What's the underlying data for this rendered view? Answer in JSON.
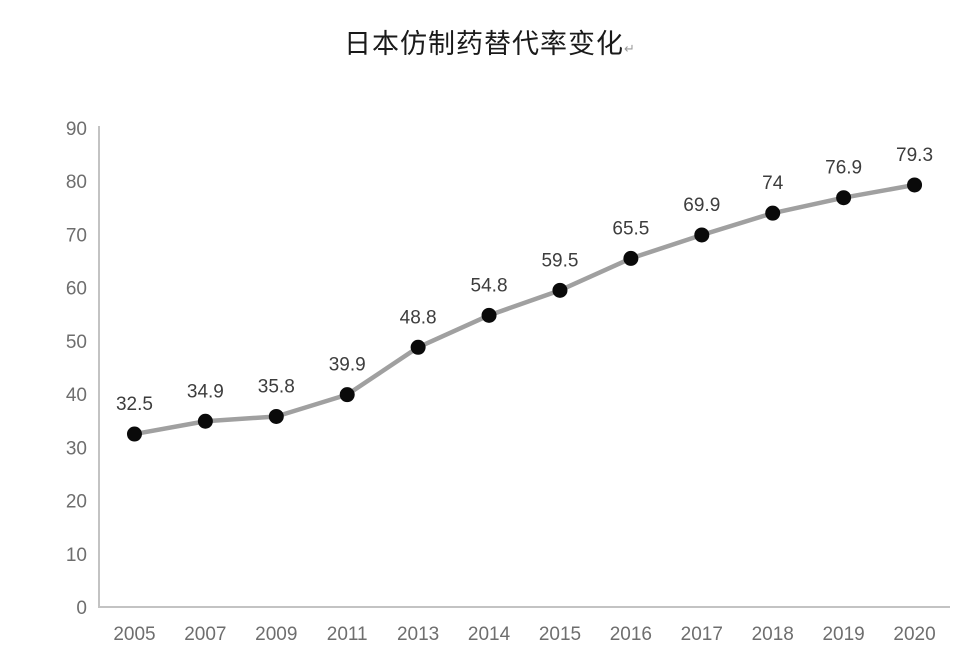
{
  "title": "日本仿制药替代率变化",
  "return_mark": "↵",
  "colors": {
    "background": "#ffffff",
    "line": "#a0a0a0",
    "marker": "#0a0a0a",
    "axis": "#c3c3c3",
    "tick_label": "#6e6e6e",
    "data_label": "#3d3d3d",
    "title": "#1a1a1a"
  },
  "chart_data": {
    "type": "line",
    "title": "日本仿制药替代率变化",
    "categories": [
      "2005",
      "2007",
      "2009",
      "2011",
      "2013",
      "2014",
      "2015",
      "2016",
      "2017",
      "2018",
      "2019",
      "2020"
    ],
    "values": [
      32.5,
      34.9,
      35.8,
      39.9,
      48.8,
      54.8,
      59.5,
      65.5,
      69.9,
      74,
      76.9,
      79.3
    ],
    "data_labels": [
      "32.5",
      "34.9",
      "35.8",
      "39.9",
      "48.8",
      "54.8",
      "59.5",
      "65.5",
      "69.9",
      "74",
      "76.9",
      "79.3"
    ],
    "ytick_labels": [
      "0",
      "10",
      "20",
      "30",
      "40",
      "50",
      "60",
      "70",
      "80",
      "90"
    ],
    "xlabel": "",
    "ylabel": "",
    "ylim": [
      0,
      90
    ],
    "ytick_step": 10,
    "grid": false,
    "legend": "none",
    "marker_style": "filled-circle"
  }
}
